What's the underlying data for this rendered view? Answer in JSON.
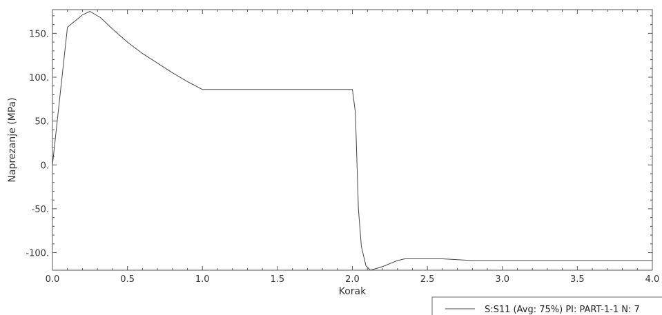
{
  "chart_data": {
    "type": "line",
    "title": "",
    "xlabel": "Korak",
    "ylabel": "Naprezanje (MPa)",
    "xlim": [
      0.0,
      4.0
    ],
    "ylim": [
      -120,
      177
    ],
    "x_ticks": [
      {
        "value": 0.0,
        "label": "0.0"
      },
      {
        "value": 0.5,
        "label": "0.5"
      },
      {
        "value": 1.0,
        "label": "1.0"
      },
      {
        "value": 1.5,
        "label": "1.5"
      },
      {
        "value": 2.0,
        "label": "2.0"
      },
      {
        "value": 2.5,
        "label": "2.5"
      },
      {
        "value": 3.0,
        "label": "3.0"
      },
      {
        "value": 3.5,
        "label": "3.5"
      },
      {
        "value": 4.0,
        "label": "4.0"
      }
    ],
    "y_ticks": [
      {
        "value": 150,
        "label": "150."
      },
      {
        "value": 100,
        "label": "100."
      },
      {
        "value": 50,
        "label": "50."
      },
      {
        "value": 0,
        "label": "0."
      },
      {
        "value": -50,
        "label": "-50."
      },
      {
        "value": -100,
        "label": "-100."
      }
    ],
    "grid": false,
    "legend_position": "bottom-right",
    "series": [
      {
        "name": "S:S11 (Avg: 75%) PI: PART-1-1 N: 7",
        "color": "#444444",
        "points": [
          [
            0.0,
            0
          ],
          [
            0.1,
            157
          ],
          [
            0.2,
            171
          ],
          [
            0.25,
            175
          ],
          [
            0.32,
            168
          ],
          [
            0.4,
            155
          ],
          [
            0.5,
            140
          ],
          [
            0.6,
            127
          ],
          [
            0.7,
            116
          ],
          [
            0.8,
            105
          ],
          [
            0.9,
            95
          ],
          [
            1.0,
            86
          ],
          [
            1.5,
            86
          ],
          [
            2.0,
            86
          ],
          [
            2.02,
            60
          ],
          [
            2.04,
            -50
          ],
          [
            2.06,
            -93
          ],
          [
            2.09,
            -115
          ],
          [
            2.12,
            -120
          ],
          [
            2.2,
            -116
          ],
          [
            2.3,
            -109
          ],
          [
            2.35,
            -107
          ],
          [
            2.6,
            -107
          ],
          [
            2.8,
            -109
          ],
          [
            3.0,
            -109
          ],
          [
            3.5,
            -109
          ],
          [
            4.0,
            -109
          ]
        ]
      }
    ]
  }
}
